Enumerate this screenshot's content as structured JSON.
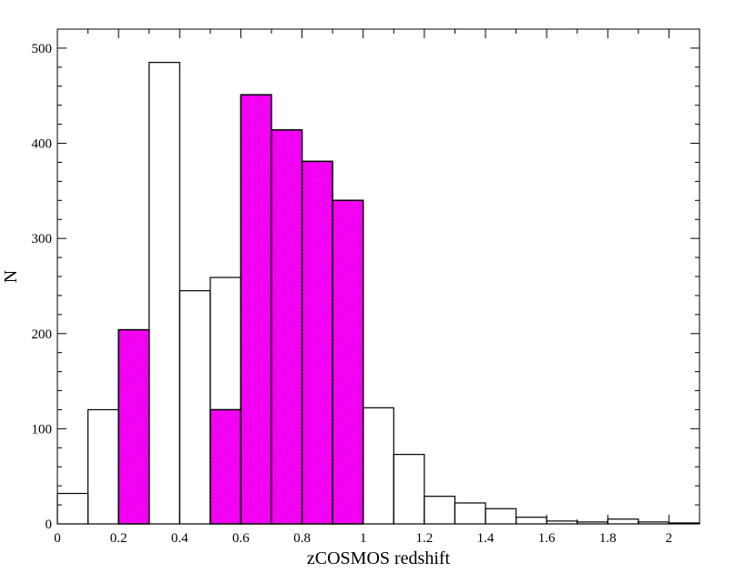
{
  "chart_data": {
    "type": "bar",
    "title": "",
    "xlabel": "zCOSMOS redshift",
    "ylabel": "N",
    "xlim": [
      0,
      2.1
    ],
    "ylim": [
      0,
      520
    ],
    "xticks": [
      0,
      0.2,
      0.4,
      0.6,
      0.8,
      1,
      1.2,
      1.4,
      1.6,
      1.8,
      2
    ],
    "xtick_labels": [
      "0",
      "0.2",
      "0.4",
      "0.6",
      "0.8",
      "1",
      "1.2",
      "1.4",
      "1.6",
      "1.8",
      "2"
    ],
    "yticks": [
      0,
      100,
      200,
      300,
      400,
      500
    ],
    "ytick_labels": [
      "0",
      "100",
      "200",
      "300",
      "400",
      "500"
    ],
    "grid": false,
    "bin_width": 0.1,
    "series": [
      {
        "fill": "none",
        "stroke": "#000000",
        "bins": [
          {
            "x": 0.0,
            "value": 32
          },
          {
            "x": 0.1,
            "value": 120
          },
          {
            "x": 0.2,
            "value": 204
          },
          {
            "x": 0.3,
            "value": 485
          },
          {
            "x": 0.4,
            "value": 245
          },
          {
            "x": 0.5,
            "value": 259
          },
          {
            "x": 0.6,
            "value": 451
          },
          {
            "x": 0.7,
            "value": 414
          },
          {
            "x": 0.8,
            "value": 381
          },
          {
            "x": 0.9,
            "value": 340
          },
          {
            "x": 1.0,
            "value": 122
          },
          {
            "x": 1.1,
            "value": 73
          },
          {
            "x": 1.2,
            "value": 29
          },
          {
            "x": 1.3,
            "value": 22
          },
          {
            "x": 1.4,
            "value": 16
          },
          {
            "x": 1.5,
            "value": 7
          },
          {
            "x": 1.6,
            "value": 3
          },
          {
            "x": 1.7,
            "value": 2
          },
          {
            "x": 1.8,
            "value": 5
          },
          {
            "x": 1.9,
            "value": 2
          },
          {
            "x": 2.0,
            "value": 1
          }
        ]
      },
      {
        "fill": "#ff00ff",
        "stroke": "#000000",
        "bins": [
          {
            "x": 0.2,
            "value": 204
          },
          {
            "x": 0.5,
            "value": 120
          },
          {
            "x": 0.6,
            "value": 451
          },
          {
            "x": 0.7,
            "value": 414
          },
          {
            "x": 0.8,
            "value": 381
          },
          {
            "x": 0.9,
            "value": 340
          }
        ]
      }
    ]
  }
}
